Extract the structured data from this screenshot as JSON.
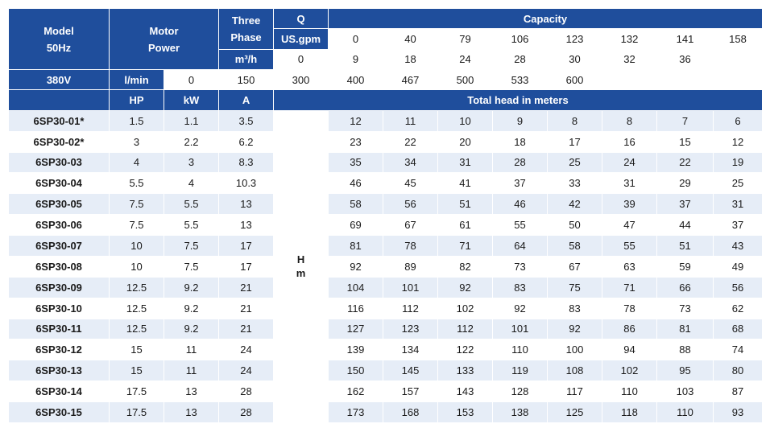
{
  "header": {
    "model_label": "Model",
    "model_freq": "50Hz",
    "motor_label_1": "Motor",
    "motor_label_2": "Power",
    "three_label_1": "Three",
    "three_label_2": "Phase",
    "voltage": "380V",
    "q_label": "Q",
    "capacity_label": "Capacity",
    "units": [
      "US.gpm",
      "m³/h",
      "l/min"
    ],
    "capacity_values": [
      [
        "0",
        "40",
        "79",
        "106",
        "123",
        "132",
        "141",
        "158"
      ],
      [
        "0",
        "9",
        "18",
        "24",
        "28",
        "30",
        "32",
        "36"
      ],
      [
        "0",
        "150",
        "300",
        "400",
        "467",
        "500",
        "533",
        "600"
      ]
    ],
    "hp_label": "HP",
    "kw_label": "kW",
    "a_label": "A",
    "total_head_label": "Total head in meters"
  },
  "hm_label_1": "H",
  "hm_label_2": "m",
  "rows": [
    {
      "model": "6SP30-01*",
      "hp": "1.5",
      "kw": "1.1",
      "a": "3.5",
      "heads": [
        "12",
        "11",
        "10",
        "9",
        "8",
        "8",
        "7",
        "6"
      ]
    },
    {
      "model": "6SP30-02*",
      "hp": "3",
      "kw": "2.2",
      "a": "6.2",
      "heads": [
        "23",
        "22",
        "20",
        "18",
        "17",
        "16",
        "15",
        "12"
      ]
    },
    {
      "model": "6SP30-03",
      "hp": "4",
      "kw": "3",
      "a": "8.3",
      "heads": [
        "35",
        "34",
        "31",
        "28",
        "25",
        "24",
        "22",
        "19"
      ]
    },
    {
      "model": "6SP30-04",
      "hp": "5.5",
      "kw": "4",
      "a": "10.3",
      "heads": [
        "46",
        "45",
        "41",
        "37",
        "33",
        "31",
        "29",
        "25"
      ]
    },
    {
      "model": "6SP30-05",
      "hp": "7.5",
      "kw": "5.5",
      "a": "13",
      "heads": [
        "58",
        "56",
        "51",
        "46",
        "42",
        "39",
        "37",
        "31"
      ]
    },
    {
      "model": "6SP30-06",
      "hp": "7.5",
      "kw": "5.5",
      "a": "13",
      "heads": [
        "69",
        "67",
        "61",
        "55",
        "50",
        "47",
        "44",
        "37"
      ]
    },
    {
      "model": "6SP30-07",
      "hp": "10",
      "kw": "7.5",
      "a": "17",
      "heads": [
        "81",
        "78",
        "71",
        "64",
        "58",
        "55",
        "51",
        "43"
      ]
    },
    {
      "model": "6SP30-08",
      "hp": "10",
      "kw": "7.5",
      "a": "17",
      "heads": [
        "92",
        "89",
        "82",
        "73",
        "67",
        "63",
        "59",
        "49"
      ]
    },
    {
      "model": "6SP30-09",
      "hp": "12.5",
      "kw": "9.2",
      "a": "21",
      "heads": [
        "104",
        "101",
        "92",
        "83",
        "75",
        "71",
        "66",
        "56"
      ]
    },
    {
      "model": "6SP30-10",
      "hp": "12.5",
      "kw": "9.2",
      "a": "21",
      "heads": [
        "116",
        "112",
        "102",
        "92",
        "83",
        "78",
        "73",
        "62"
      ]
    },
    {
      "model": "6SP30-11",
      "hp": "12.5",
      "kw": "9.2",
      "a": "21",
      "heads": [
        "127",
        "123",
        "112",
        "101",
        "92",
        "86",
        "81",
        "68"
      ]
    },
    {
      "model": "6SP30-12",
      "hp": "15",
      "kw": "11",
      "a": "24",
      "heads": [
        "139",
        "134",
        "122",
        "110",
        "100",
        "94",
        "88",
        "74"
      ]
    },
    {
      "model": "6SP30-13",
      "hp": "15",
      "kw": "11",
      "a": "24",
      "heads": [
        "150",
        "145",
        "133",
        "119",
        "108",
        "102",
        "95",
        "80"
      ]
    },
    {
      "model": "6SP30-14",
      "hp": "17.5",
      "kw": "13",
      "a": "28",
      "heads": [
        "162",
        "157",
        "143",
        "128",
        "117",
        "110",
        "103",
        "87"
      ]
    },
    {
      "model": "6SP30-15",
      "hp": "17.5",
      "kw": "13",
      "a": "28",
      "heads": [
        "173",
        "168",
        "153",
        "138",
        "125",
        "118",
        "110",
        "93"
      ]
    }
  ],
  "colors": {
    "header_blue": "#1f4e9c",
    "stripe": "#e6edf7"
  }
}
